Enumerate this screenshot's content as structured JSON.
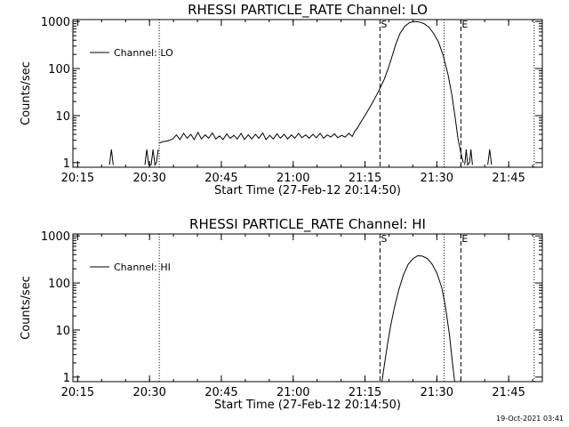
{
  "footer": {
    "timestamp": "19-Oct-2021 03:41"
  },
  "chart_data": [
    {
      "type": "line",
      "title": "RHESSI PARTICLE_RATE Channel: LO",
      "xlabel": "Start Time (27-Feb-12 20:14:50)",
      "ylabel": "Counts/sec",
      "yscale": "log",
      "xlim": [
        -0.83,
        97.2
      ],
      "ylim": [
        0.8,
        1100
      ],
      "xtick_values": [
        0.17,
        15.17,
        30.17,
        45.17,
        60.17,
        75.17,
        90.17
      ],
      "xtick_labels": [
        "20:15",
        "20:30",
        "20:45",
        "21:00",
        "21:15",
        "21:30",
        "21:45"
      ],
      "ytick_values": [
        1,
        10,
        100,
        1000
      ],
      "ytick_labels": [
        "1",
        "10",
        "100",
        "1000"
      ],
      "legend": {
        "label": "Channel: LO",
        "position": "top-left"
      },
      "markers": [
        {
          "label": "S",
          "x": 63.3,
          "style": "dashed"
        },
        {
          "label": "E",
          "x": 80.2,
          "style": "dashed"
        }
      ],
      "dotted_lines": [
        17.2,
        76.7,
        95.5
      ],
      "series": [
        {
          "segments": [
            [
              [
                6.8,
                0.9
              ],
              [
                7.2,
                1.9
              ],
              [
                7.6,
                0.9
              ]
            ],
            [
              [
                14.2,
                0.9
              ],
              [
                14.6,
                1.9
              ],
              [
                15.0,
                0.9
              ],
              [
                15.5,
                0.9
              ],
              [
                15.9,
                1.9
              ],
              [
                16.3,
                0.9
              ],
              [
                16.6,
                1.0
              ],
              [
                17.0,
                1.9
              ]
            ],
            [
              [
                17.2,
                2.6
              ],
              [
                18.0,
                2.8
              ],
              [
                19.0,
                2.9
              ],
              [
                20.0,
                3.2
              ],
              [
                20.8,
                3.9
              ],
              [
                21.5,
                3.1
              ],
              [
                22.3,
                4.2
              ],
              [
                23.0,
                3.3
              ],
              [
                23.8,
                4.0
              ],
              [
                24.5,
                3.1
              ],
              [
                25.3,
                4.4
              ],
              [
                26.0,
                3.2
              ],
              [
                26.8,
                3.9
              ],
              [
                27.5,
                3.3
              ],
              [
                28.3,
                4.3
              ],
              [
                29.0,
                3.2
              ],
              [
                29.8,
                3.7
              ],
              [
                30.5,
                3.1
              ],
              [
                31.3,
                4.1
              ],
              [
                32.0,
                3.3
              ],
              [
                32.8,
                3.8
              ],
              [
                33.5,
                3.2
              ],
              [
                34.3,
                4.2
              ],
              [
                35.0,
                3.1
              ],
              [
                35.8,
                3.9
              ],
              [
                36.5,
                3.2
              ],
              [
                37.3,
                4.0
              ],
              [
                38.0,
                3.3
              ],
              [
                38.8,
                4.3
              ],
              [
                39.5,
                3.1
              ],
              [
                40.3,
                3.8
              ],
              [
                41.0,
                3.2
              ],
              [
                41.8,
                4.1
              ],
              [
                42.5,
                3.3
              ],
              [
                43.3,
                4.0
              ],
              [
                44.0,
                3.2
              ],
              [
                44.8,
                3.9
              ],
              [
                45.5,
                3.3
              ],
              [
                46.3,
                4.2
              ],
              [
                47.0,
                3.4
              ],
              [
                47.8,
                3.9
              ],
              [
                48.5,
                3.3
              ],
              [
                49.3,
                4.0
              ],
              [
                50.0,
                3.4
              ],
              [
                50.8,
                4.2
              ],
              [
                51.5,
                3.3
              ],
              [
                52.3,
                3.9
              ],
              [
                53.0,
                3.5
              ],
              [
                53.8,
                4.1
              ],
              [
                54.5,
                3.4
              ],
              [
                55.3,
                3.8
              ],
              [
                56.0,
                3.5
              ],
              [
                56.8,
                4.2
              ],
              [
                57.5,
                3.6
              ],
              [
                58.0,
                4.6
              ],
              [
                58.6,
                5.5
              ],
              [
                59.2,
                7.0
              ],
              [
                59.8,
                8.8
              ],
              [
                60.4,
                11.0
              ],
              [
                61.0,
                14.0
              ],
              [
                61.6,
                18.0
              ],
              [
                62.2,
                23.0
              ],
              [
                62.8,
                30.0
              ],
              [
                63.5,
                42.0
              ],
              [
                64.2,
                60.0
              ],
              [
                65.0,
                100.0
              ],
              [
                65.8,
                180.0
              ],
              [
                66.6,
                330.0
              ],
              [
                67.5,
                560.0
              ],
              [
                68.5,
                800.0
              ],
              [
                69.5,
                950.0
              ],
              [
                70.5,
                1000.0
              ],
              [
                71.5,
                980.0
              ],
              [
                72.5,
                900.0
              ],
              [
                73.5,
                760.0
              ],
              [
                74.5,
                560.0
              ],
              [
                75.5,
                370.0
              ],
              [
                76.5,
                190.0
              ],
              [
                77.5,
                75.0
              ],
              [
                78.3,
                28.0
              ],
              [
                79.0,
                9.0
              ],
              [
                79.6,
                3.2
              ],
              [
                80.2,
                1.6
              ],
              [
                80.7,
                1.0
              ]
            ],
            [
              [
                81.0,
                0.9
              ],
              [
                81.3,
                1.9
              ],
              [
                81.6,
                0.9
              ],
              [
                82.0,
                1.0
              ],
              [
                82.3,
                1.9
              ],
              [
                82.6,
                0.9
              ]
            ],
            [
              [
                85.8,
                0.9
              ],
              [
                86.2,
                1.9
              ],
              [
                86.6,
                0.9
              ]
            ]
          ]
        }
      ]
    },
    {
      "type": "line",
      "title": "RHESSI PARTICLE_RATE Channel: HI",
      "xlabel": "Start Time (27-Feb-12 20:14:50)",
      "ylabel": "Counts/sec",
      "yscale": "log",
      "xlim": [
        -0.83,
        97.2
      ],
      "ylim": [
        0.8,
        1100
      ],
      "xtick_values": [
        0.17,
        15.17,
        30.17,
        45.17,
        60.17,
        75.17,
        90.17
      ],
      "xtick_labels": [
        "20:15",
        "20:30",
        "20:45",
        "21:00",
        "21:15",
        "21:30",
        "21:45"
      ],
      "ytick_values": [
        1,
        10,
        100,
        1000
      ],
      "ytick_labels": [
        "1",
        "10",
        "100",
        "1000"
      ],
      "legend": {
        "label": "Channel: HI",
        "position": "top-left"
      },
      "markers": [
        {
          "label": "S",
          "x": 63.3,
          "style": "dashed"
        },
        {
          "label": "E",
          "x": 80.2,
          "style": "dashed"
        }
      ],
      "dotted_lines": [
        17.2,
        76.7,
        95.5
      ],
      "series": [
        {
          "segments": [
            [
              [
                63.7,
                0.8
              ],
              [
                64.2,
                1.8
              ],
              [
                64.8,
                4.5
              ],
              [
                65.5,
                12.0
              ],
              [
                66.3,
                30.0
              ],
              [
                67.2,
                70.0
              ],
              [
                68.2,
                150.0
              ],
              [
                69.2,
                250.0
              ],
              [
                70.2,
                330.0
              ],
              [
                71.2,
                380.0
              ],
              [
                72.2,
                370.0
              ],
              [
                73.2,
                330.0
              ],
              [
                74.2,
                250.0
              ],
              [
                75.2,
                160.0
              ],
              [
                76.2,
                80.0
              ],
              [
                77.0,
                30.0
              ],
              [
                77.8,
                8.0
              ],
              [
                78.4,
                2.2
              ],
              [
                78.9,
                0.8
              ]
            ]
          ]
        }
      ]
    }
  ]
}
